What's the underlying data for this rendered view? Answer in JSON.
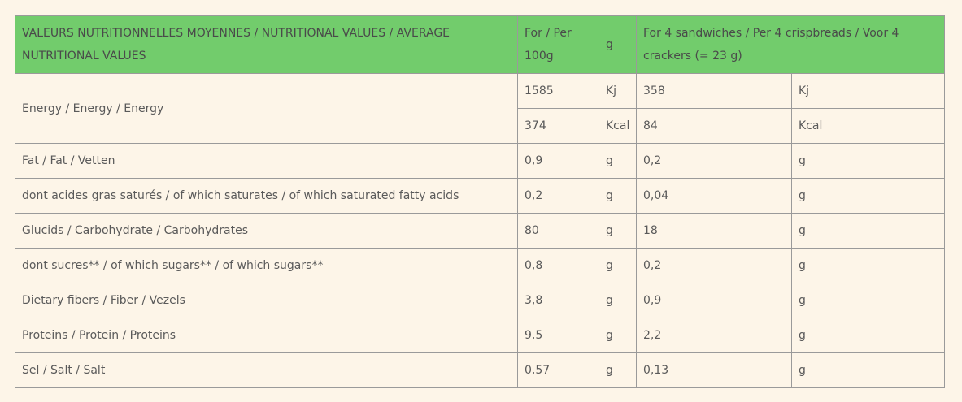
{
  "table": {
    "header": [
      "VALEURS NUTRITIONNELLES MOYENNES / NUTRITIONAL VALUES / AVERAGE NUTRITIONAL VALUES",
      "For / Per 100g",
      "g",
      "For 4 sandwiches / Per 4 crispbreads / Voor 4 crackers (= 23 g)"
    ],
    "rows": [
      {
        "label": "Energy / Energy / Energy",
        "lines": [
          [
            "1585",
            "Kj",
            "358",
            "Kj"
          ],
          [
            "374",
            "Kcal",
            "84",
            "Kcal"
          ]
        ]
      },
      {
        "label": "Fat / Fat / Vetten",
        "lines": [
          [
            "0,9",
            "g",
            "0,2",
            "g"
          ]
        ]
      },
      {
        "label": "dont acides gras saturés / of which saturates / of which saturated fatty acids",
        "lines": [
          [
            "0,2",
            "g",
            "0,04",
            "g"
          ]
        ]
      },
      {
        "label": "Glucids / Carbohydrate / Carbohydrates",
        "lines": [
          [
            "80",
            "g",
            "18",
            "g"
          ]
        ]
      },
      {
        "label": "dont sucres** / of which sugars** / of which sugars**",
        "lines": [
          [
            "0,8",
            "g",
            "0,2",
            "g"
          ]
        ]
      },
      {
        "label": "Dietary fibers / Fiber / Vezels",
        "lines": [
          [
            "3,8",
            "g",
            "0,9",
            "g"
          ]
        ]
      },
      {
        "label": "Proteins / Protein / Proteins",
        "lines": [
          [
            "9,5",
            "g",
            "2,2",
            "g"
          ]
        ]
      },
      {
        "label": "Sel / Salt / Salt",
        "lines": [
          [
            "0,57",
            "g",
            "0,13",
            "g"
          ]
        ]
      }
    ]
  }
}
